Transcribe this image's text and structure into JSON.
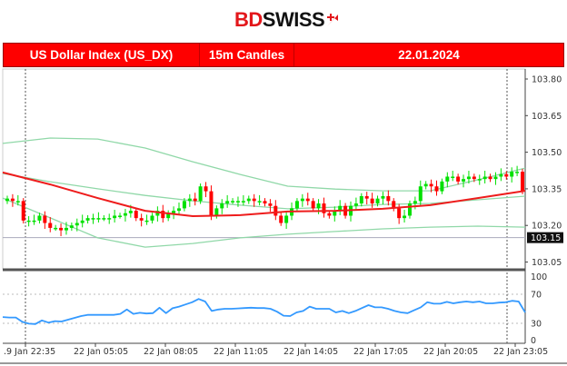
{
  "logo": {
    "part1": "BD",
    "part2": "SWISS"
  },
  "header": {
    "instrument": "US Dollar Index (US_DX)",
    "timeframe": "15m Candles",
    "date": "22.01.2024"
  },
  "colors": {
    "brand": "#fe0000",
    "bull": "#00e000",
    "bear": "#ff0000",
    "ma": "#ee1c1c",
    "bands": "#90d8a8",
    "rsi": "#3399ff"
  },
  "chart_data": [
    {
      "type": "candlestick",
      "title": "",
      "y_ticks": [
        "103.80",
        "103.65",
        "103.50",
        "103.35",
        "103.20",
        "103.05"
      ],
      "ylim": [
        103.0,
        103.84
      ],
      "current_price": "103.15",
      "first_open": 103.3,
      "closes": [
        103.31,
        103.3,
        103.3,
        103.22,
        103.22,
        103.22,
        103.24,
        103.21,
        103.19,
        103.19,
        103.18,
        103.19,
        103.2,
        103.21,
        103.22,
        103.23,
        103.23,
        103.23,
        103.23,
        103.23,
        103.24,
        103.24,
        103.25,
        103.26,
        103.23,
        103.22,
        103.22,
        103.24,
        103.26,
        103.23,
        103.25,
        103.26,
        103.27,
        103.3,
        103.31,
        103.3,
        103.36,
        103.34,
        103.24,
        103.27,
        103.29,
        103.3,
        103.3,
        103.3,
        103.3,
        103.31,
        103.3,
        103.3,
        103.29,
        103.28,
        103.24,
        103.21,
        103.24,
        103.27,
        103.3,
        103.31,
        103.3,
        103.27,
        103.29,
        103.25,
        103.24,
        103.26,
        103.28,
        103.24,
        103.28,
        103.29,
        103.32,
        103.31,
        103.29,
        103.31,
        103.32,
        103.3,
        103.27,
        103.23,
        103.24,
        103.29,
        103.3,
        103.36,
        103.37,
        103.36,
        103.34,
        103.38,
        103.4,
        103.4,
        103.38,
        103.39,
        103.4,
        103.39,
        103.39,
        103.4,
        103.39,
        103.4,
        103.41,
        103.4,
        103.42,
        103.42,
        103.34
      ],
      "moving_average": [
        103.417,
        103.368,
        103.312,
        103.26,
        103.238,
        103.242,
        103.257,
        103.26,
        103.268,
        103.283,
        103.312,
        103.342
      ],
      "band_upper": [
        103.536,
        103.558,
        103.554,
        103.517,
        103.461,
        103.409,
        103.361,
        103.349,
        103.342,
        103.342,
        103.387,
        103.435
      ],
      "band_inner": [
        103.413,
        103.379,
        103.35,
        103.323,
        103.301,
        103.283,
        103.268,
        103.275,
        103.286,
        103.29,
        103.305,
        103.32
      ],
      "band_lower": [
        103.312,
        103.231,
        103.149,
        103.111,
        103.126,
        103.149,
        103.164,
        103.175,
        103.186,
        103.193,
        103.197,
        103.193
      ]
    },
    {
      "type": "line",
      "name": "",
      "y_ticks": [
        "100",
        "70",
        "30",
        "0"
      ],
      "ylim": [
        0,
        100
      ],
      "levels": [
        70,
        30
      ],
      "values": [
        38.6,
        38,
        38,
        32,
        29.5,
        29,
        34,
        31,
        33,
        32.5,
        35,
        37.5,
        40,
        41.6,
        41.6,
        41.6,
        41.6,
        41.6,
        43,
        49,
        43,
        44.5,
        43.5,
        44,
        51.5,
        44,
        50.8,
        53,
        56,
        59,
        63.5,
        60,
        47,
        49,
        50,
        50,
        50.5,
        51,
        51.5,
        51,
        51,
        50,
        46,
        40.5,
        40,
        45,
        47,
        53,
        50,
        50,
        50,
        45,
        47,
        44,
        47,
        51,
        55,
        52,
        52,
        50,
        47,
        45,
        44,
        48,
        52,
        59,
        57,
        57,
        59.5,
        57.5,
        59,
        60,
        59,
        60,
        57.5,
        57.5,
        58.5,
        59,
        61,
        60,
        45
      ]
    }
  ],
  "x_ticks": [
    ".9 Jan 22:35",
    "22 Jan 05:05",
    "22 Jan 08:05",
    "22 Jan 11:05",
    "22 Jan 14:05",
    "22 Jan 17:05",
    "22 Jan 20:05",
    "22 Jan 23:05"
  ]
}
